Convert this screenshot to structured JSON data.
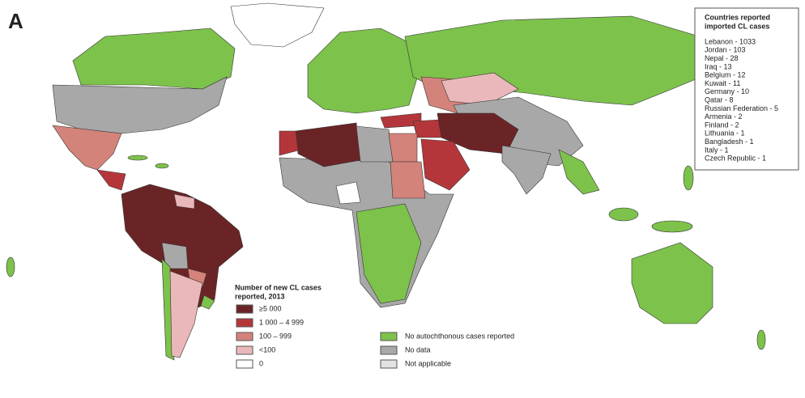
{
  "panel_label": "A",
  "imported_box": {
    "title": [
      "Countries reported",
      "imported CL cases"
    ],
    "entries": [
      "Lebanon - 1033",
      "Jordan - 103",
      "Nepal - 28",
      "Iraq - 13",
      "Belgium - 12",
      "Kuwait - 11",
      "Germany - 10",
      "Qatar - 8",
      "Russian Federation - 5",
      "Armenia - 2",
      "Finland - 2",
      "Lithuania - 1",
      "Bangladesh - 1",
      "Italy - 1",
      "Czech Republic - 1"
    ]
  },
  "legend": {
    "title": [
      "Number of new CL cases",
      "reported, 2013"
    ],
    "items": [
      {
        "label": "≥5 000",
        "color": "#6b2426"
      },
      {
        "label": "1 000 – 4 999",
        "color": "#b5363a"
      },
      {
        "label": "100 – 999",
        "color": "#d4837a"
      },
      {
        "label": "<100",
        "color": "#eab8ba"
      },
      {
        "label": "0",
        "color": "#ffffff"
      }
    ],
    "other_items": [
      {
        "label": "No autochthonous cases reported",
        "color": "#7dc24b"
      },
      {
        "label": "No data",
        "color": "#a8a8a8"
      },
      {
        "label": "Not applicable",
        "color": "#e3e3e3"
      }
    ]
  }
}
